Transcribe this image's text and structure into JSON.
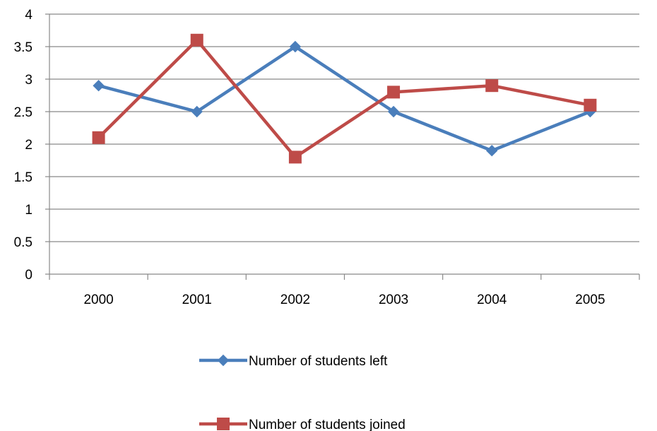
{
  "chart_data": {
    "type": "line",
    "title": "",
    "xlabel": "",
    "ylabel": "",
    "categories": [
      "2000",
      "2001",
      "2002",
      "2003",
      "2004",
      "2005"
    ],
    "ylim": [
      0,
      4
    ],
    "yticks": [
      0,
      0.5,
      1,
      1.5,
      2,
      2.5,
      3,
      3.5,
      4
    ],
    "ytick_labels": [
      "0",
      "0.5",
      "1",
      "1.5",
      "2",
      "2.5",
      "3",
      "3.5",
      "4"
    ],
    "grid": true,
    "legend_position": "bottom",
    "series": [
      {
        "name": "Number of students left",
        "values": [
          2.9,
          2.5,
          3.5,
          2.5,
          1.9,
          2.5
        ],
        "color": "#4A7EBB",
        "marker": "diamond"
      },
      {
        "name": "Number of students joined",
        "values": [
          2.1,
          3.6,
          1.8,
          2.8,
          2.9,
          2.6
        ],
        "color": "#BE4B48",
        "marker": "square"
      }
    ]
  }
}
